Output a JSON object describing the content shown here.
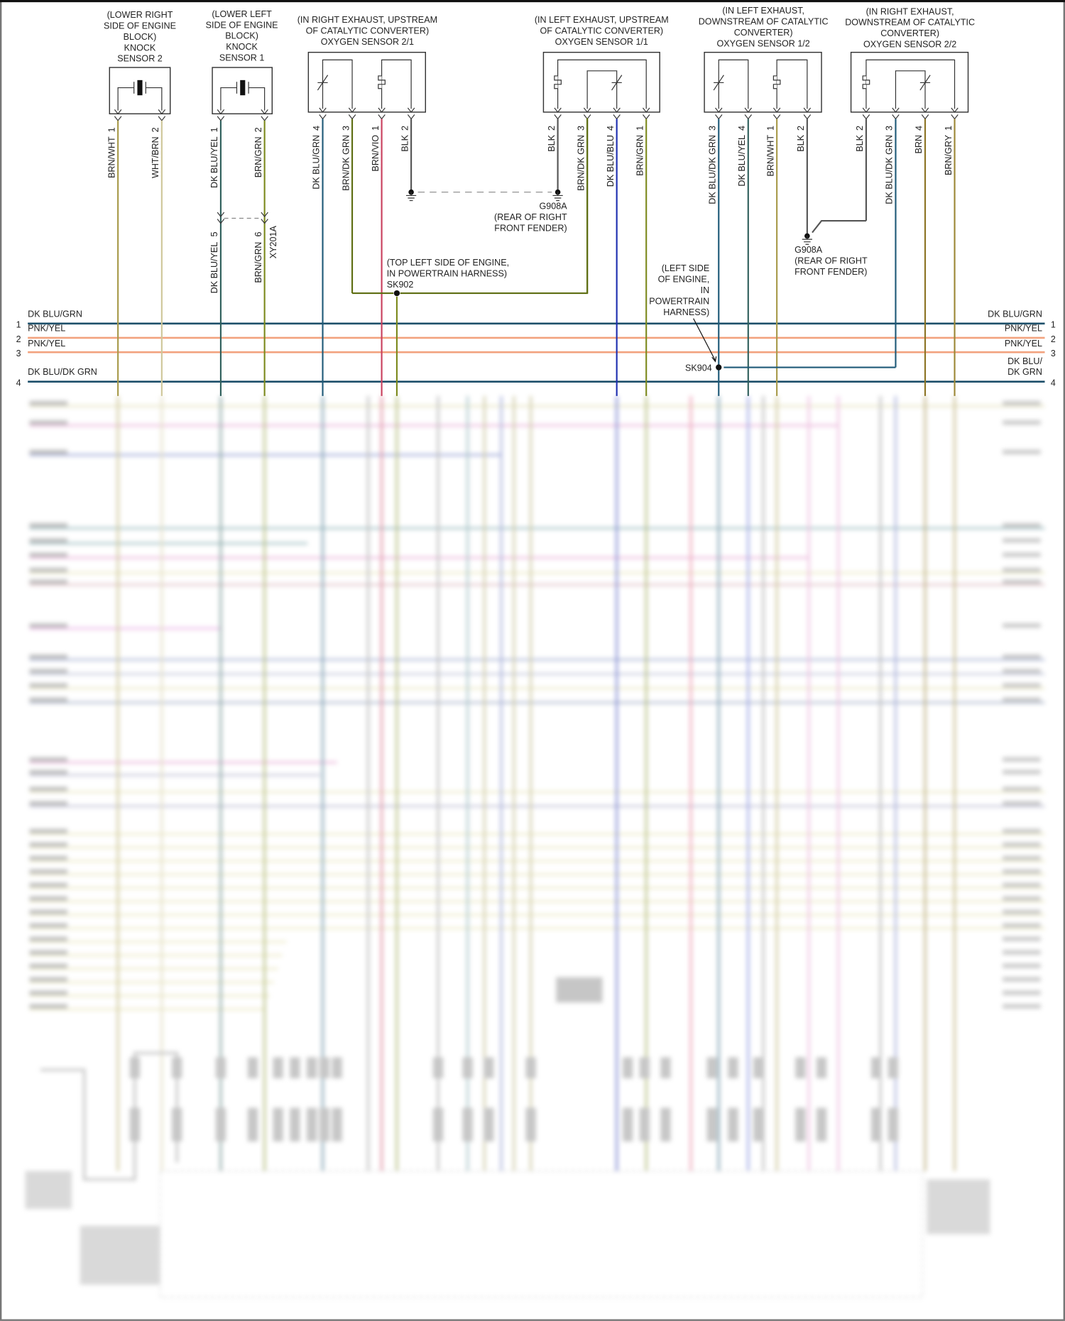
{
  "diagram": {
    "components": [
      {
        "id": "knock-sensor-2",
        "type": "knock",
        "label": [
          "(LOWER RIGHT",
          "SIDE OF ENGINE",
          "BLOCK)",
          "KNOCK",
          "SENSOR 2"
        ],
        "pins": [
          {
            "num": "1",
            "wire": "BRN/WHT"
          },
          {
            "num": "2",
            "wire": "WHT/BRN"
          }
        ]
      },
      {
        "id": "knock-sensor-1",
        "type": "knock",
        "label": [
          "(LOWER LEFT",
          "SIDE OF ENGINE",
          "BLOCK)",
          "KNOCK",
          "SENSOR 1"
        ],
        "pins": [
          {
            "num": "1",
            "wire": "DK BLU/YEL"
          },
          {
            "num": "2",
            "wire": "BRN/GRN"
          }
        ]
      },
      {
        "id": "oxygen-sensor-2-1",
        "type": "o2-up",
        "label": [
          "(IN RIGHT EXHAUST, UPSTREAM",
          "OF CATALYTIC CONVERTER)",
          "OXYGEN SENSOR 2/1"
        ],
        "pins": [
          {
            "num": "4",
            "wire": "DK BLU/GRN"
          },
          {
            "num": "3",
            "wire": "BRN/DK GRN"
          },
          {
            "num": "1",
            "wire": "BRN/VIO"
          },
          {
            "num": "2",
            "wire": "BLK"
          }
        ]
      },
      {
        "id": "oxygen-sensor-1-1",
        "type": "o2-up-mirror",
        "label": [
          "(IN LEFT EXHAUST, UPSTREAM",
          "OF CATALYTIC CONVERTER)",
          "OXYGEN SENSOR 1/1"
        ],
        "pins": [
          {
            "num": "2",
            "wire": "BLK"
          },
          {
            "num": "3",
            "wire": "BRN/DK GRN"
          },
          {
            "num": "4",
            "wire": "DK BLU/BLU"
          },
          {
            "num": "1",
            "wire": "BRN/GRN"
          }
        ]
      },
      {
        "id": "oxygen-sensor-1-2",
        "type": "o2-up",
        "label": [
          "(IN LEFT EXHAUST,",
          "DOWNSTREAM OF CATALYTIC",
          "CONVERTER)",
          "OXYGEN SENSOR 1/2"
        ],
        "pins": [
          {
            "num": "3",
            "wire": "DK BLU/DK GRN"
          },
          {
            "num": "4",
            "wire": "DK BLU/YEL"
          },
          {
            "num": "1",
            "wire": "BRN/WHT"
          },
          {
            "num": "2",
            "wire": "BLK"
          }
        ]
      },
      {
        "id": "oxygen-sensor-2-2",
        "type": "o2-up-mirror",
        "label": [
          "(IN RIGHT EXHAUST,",
          "DOWNSTREAM OF CATALYTIC",
          "CONVERTER)",
          "OXYGEN SENSOR 2/2"
        ],
        "pins": [
          {
            "num": "2",
            "wire": "BLK"
          },
          {
            "num": "3",
            "wire": "DK BLU/DK GRN"
          },
          {
            "num": "4",
            "wire": "BRN"
          },
          {
            "num": "1",
            "wire": "BRN/GRY"
          }
        ]
      }
    ],
    "connector": {
      "name": "XY201A",
      "pins": [
        {
          "num": "5",
          "wire": "DK BLU/YEL"
        },
        {
          "num": "6",
          "wire": "BRN/GRN"
        }
      ]
    },
    "grounds": [
      {
        "name": "G908A",
        "location": [
          "(REAR OF RIGHT",
          "FRONT FENDER)"
        ]
      },
      {
        "name": "G908A",
        "location": [
          "(REAR OF RIGHT",
          "FRONT FENDER)"
        ]
      }
    ],
    "splices": [
      {
        "name": "SK902",
        "location": [
          "(TOP LEFT SIDE OF ENGINE,",
          "IN POWERTRAIN HARNESS)"
        ]
      },
      {
        "name": "SK904",
        "location": [
          "(LEFT SIDE",
          "OF ENGINE,",
          "IN",
          "POWERTRAIN",
          "HARNESS)"
        ]
      }
    ],
    "bus": [
      {
        "num": "1",
        "left": "DK BLU/GRN",
        "right": [
          "DK BLU/GRN"
        ],
        "color": "#1d4f6a"
      },
      {
        "num": "2",
        "left": "PNK/YEL",
        "right": [
          "PNK/YEL"
        ],
        "color": "#f2a27e"
      },
      {
        "num": "3",
        "left": "PNK/YEL",
        "right": [
          "PNK/YEL"
        ],
        "color": "#f2a27e"
      },
      {
        "num": "4",
        "left": "DK BLU/DK GRN",
        "right": [
          "DK BLU/",
          "DK GRN"
        ],
        "color": "#1d4f6a"
      }
    ],
    "wire_colors": {
      "BRN/WHT": "#a89a4a",
      "WHT/BRN": "#cfc79a",
      "DK BLU/YEL": "#2f5f5c",
      "BRN/GRN": "#7d8a1e",
      "DK BLU/GRN": "#1f5a78",
      "BRN/DK GRN": "#5e6e12",
      "BRN/VIO": "#c9405e",
      "BLK": "#555555",
      "DK BLU/BLU": "#1f2fb0",
      "DK BLU/DK GRN": "#1f5a78",
      "BRN": "#8c7424",
      "BRN/GRY": "#9c8736"
    }
  }
}
